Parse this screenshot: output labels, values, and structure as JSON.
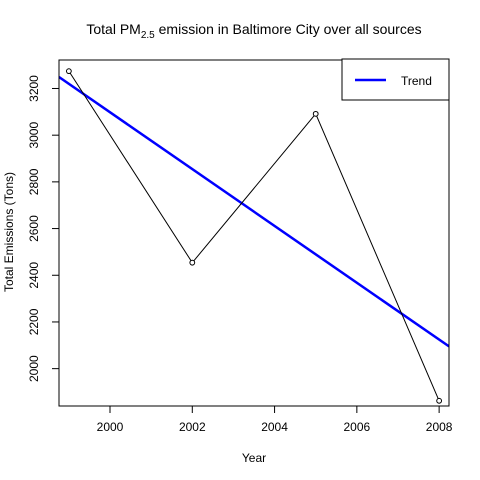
{
  "chart_data": {
    "type": "line",
    "title": {
      "prefix": "Total PM",
      "subscript": "2.5",
      "suffix": " emission in Baltimore City over all sources"
    },
    "xlabel": "Year",
    "ylabel": "Total Emissions (Tons)",
    "xlim": [
      1998.76,
      2008.24
    ],
    "ylim": [
      1840,
      3322
    ],
    "x_ticks": [
      2000,
      2002,
      2004,
      2006,
      2008
    ],
    "y_ticks": [
      2000,
      2200,
      2400,
      2600,
      2800,
      3000,
      3200
    ],
    "series": [
      {
        "x": [
          1999,
          2002,
          2005,
          2008
        ],
        "y": [
          3274.2,
          2453.9,
          3091.4,
          1862.3
        ],
        "color": "#000000",
        "marker": "open-circle"
      }
    ],
    "trend": {
      "name": "Trend",
      "intercept_at_x0": 3249,
      "x0": 1998.76,
      "slope": -121.7,
      "color": "#0000ff"
    },
    "legend": {
      "position": "top-right",
      "entries": [
        "Trend"
      ]
    },
    "grid": false
  }
}
